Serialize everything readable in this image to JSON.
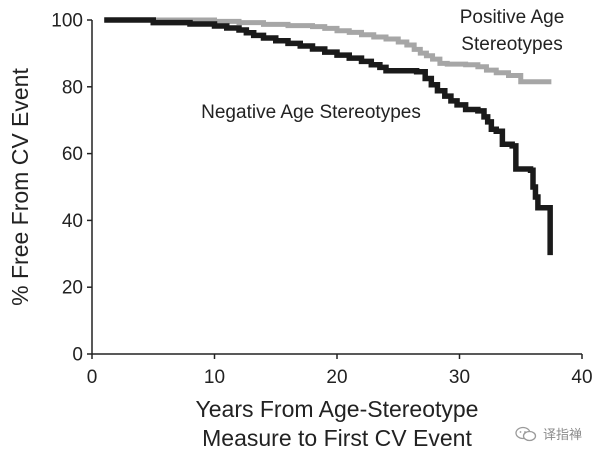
{
  "chart_data": {
    "type": "line",
    "xlabel_lines": [
      "Years From Age-Stereotype",
      "Measure to First CV Event"
    ],
    "ylabel": "% Free From CV Event",
    "xlim": [
      0,
      40
    ],
    "ylim": [
      0,
      100
    ],
    "xticks": [
      0,
      10,
      20,
      30,
      40
    ],
    "yticks": [
      0,
      20,
      40,
      60,
      80,
      100
    ],
    "grid": false,
    "series": [
      {
        "name_lines": [
          "Positive Age",
          "Stereotypes"
        ],
        "color": "#a6a6a6",
        "step": true,
        "points": [
          [
            1,
            100
          ],
          [
            8,
            100
          ],
          [
            10,
            99.6
          ],
          [
            12,
            99.2
          ],
          [
            14,
            98.7
          ],
          [
            16,
            98.3
          ],
          [
            18,
            98.0
          ],
          [
            19,
            97.5
          ],
          [
            20,
            96.8
          ],
          [
            21,
            96.3
          ],
          [
            22,
            95.6
          ],
          [
            23,
            94.9
          ],
          [
            24,
            94.3
          ],
          [
            25,
            93.4
          ],
          [
            25.7,
            92.5
          ],
          [
            26.3,
            91.2
          ],
          [
            26.8,
            90.1
          ],
          [
            27.3,
            89.3
          ],
          [
            27.8,
            88.3
          ],
          [
            28.4,
            87.0
          ],
          [
            29,
            86.8
          ],
          [
            30.5,
            86.6
          ],
          [
            31.5,
            86.0
          ],
          [
            32.2,
            85.0
          ],
          [
            33,
            84.2
          ],
          [
            34,
            83.4
          ],
          [
            35,
            81.5
          ],
          [
            37.5,
            81.5
          ]
        ]
      },
      {
        "name": "Negative Age Stereotypes",
        "color": "#1a1a1a",
        "step": true,
        "points": [
          [
            1,
            100
          ],
          [
            3.5,
            100
          ],
          [
            5,
            99.2
          ],
          [
            8,
            98.8
          ],
          [
            10,
            98.2
          ],
          [
            11,
            97.6
          ],
          [
            12,
            97.0
          ],
          [
            12.6,
            96.2
          ],
          [
            13.2,
            95.4
          ],
          [
            14,
            94.6
          ],
          [
            15,
            93.8
          ],
          [
            16,
            93.0
          ],
          [
            17,
            92.2
          ],
          [
            18,
            91.3
          ],
          [
            19,
            90.4
          ],
          [
            20,
            89.5
          ],
          [
            21,
            88.6
          ],
          [
            22,
            87.6
          ],
          [
            22.8,
            86.6
          ],
          [
            23.5,
            85.8
          ],
          [
            24,
            84.8
          ],
          [
            26.5,
            84.5
          ],
          [
            27.2,
            82.5
          ],
          [
            27.7,
            80.6
          ],
          [
            28.2,
            78.8
          ],
          [
            28.8,
            77.2
          ],
          [
            29.3,
            75.8
          ],
          [
            29.8,
            74.6
          ],
          [
            30.5,
            73.2
          ],
          [
            31.5,
            72.8
          ],
          [
            32,
            71.0
          ],
          [
            32.3,
            69.5
          ],
          [
            32.6,
            67.3
          ],
          [
            33,
            66.7
          ],
          [
            33.5,
            62.8
          ],
          [
            34.3,
            62.3
          ],
          [
            34.6,
            55.4
          ],
          [
            35.8,
            55.0
          ],
          [
            36,
            50.0
          ],
          [
            36.2,
            47.0
          ],
          [
            36.4,
            43.8
          ],
          [
            37.2,
            43.8
          ],
          [
            37.4,
            29.6
          ]
        ]
      }
    ]
  },
  "watermark": {
    "text": "译指禅",
    "icon": "wechat-icon"
  }
}
